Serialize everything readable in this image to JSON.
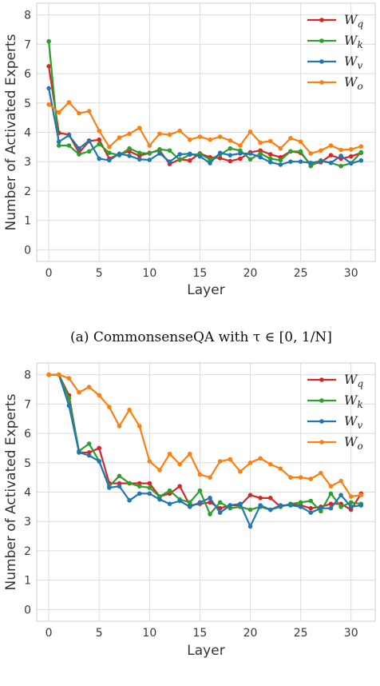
{
  "chart_data": [
    {
      "type": "line",
      "caption": "(a) CommonsenseQA with τ ∈ [0, 1/N]",
      "xlabel": "Layer",
      "ylabel": "Number of Activated Experts",
      "xlim": [
        -1.2,
        32.4
      ],
      "ylim": [
        -0.4,
        8.4
      ],
      "xticks": [
        0,
        5,
        10,
        15,
        20,
        25,
        30
      ],
      "yticks": [
        0,
        1,
        2,
        3,
        4,
        5,
        6,
        7,
        8
      ],
      "grid": true,
      "legend": "top-right",
      "x": [
        0,
        1,
        2,
        3,
        4,
        5,
        6,
        7,
        8,
        9,
        10,
        11,
        12,
        13,
        14,
        15,
        16,
        17,
        18,
        19,
        20,
        21,
        22,
        23,
        24,
        25,
        26,
        27,
        28,
        29,
        30,
        31
      ],
      "series": [
        {
          "name": "W",
          "subscript": "q",
          "color": "#d62728",
          "values": [
            6.25,
            3.98,
            3.92,
            3.3,
            3.7,
            3.75,
            3.1,
            3.26,
            3.35,
            3.2,
            3.3,
            3.38,
            2.92,
            3.08,
            3.04,
            3.28,
            3.15,
            3.12,
            3.02,
            3.1,
            3.32,
            3.38,
            3.25,
            3.15,
            3.35,
            3.3,
            2.9,
            2.98,
            3.22,
            3.1,
            3.18,
            3.3
          ]
        },
        {
          "name": "W",
          "subscript": "k",
          "color": "#2ca02c",
          "values": [
            7.1,
            3.55,
            3.55,
            3.25,
            3.35,
            3.6,
            3.3,
            3.22,
            3.45,
            3.3,
            3.28,
            3.42,
            3.38,
            3.06,
            3.24,
            3.26,
            3.08,
            3.24,
            3.45,
            3.38,
            3.08,
            3.28,
            3.1,
            3.05,
            3.35,
            3.35,
            2.85,
            3.04,
            2.96,
            2.85,
            2.95,
            3.32
          ]
        },
        {
          "name": "W",
          "subscript": "v",
          "color": "#1f77b4",
          "values": [
            5.5,
            3.68,
            3.9,
            3.45,
            3.72,
            3.1,
            3.05,
            3.27,
            3.2,
            3.08,
            3.06,
            3.28,
            3.0,
            3.25,
            3.27,
            3.18,
            2.95,
            3.3,
            3.22,
            3.28,
            3.28,
            3.15,
            2.98,
            2.9,
            3.0,
            3.0,
            2.96,
            3.02,
            2.96,
            3.2,
            2.94,
            3.04
          ]
        },
        {
          "name": "W",
          "subscript": "o",
          "color": "#ff7f0e",
          "values": [
            4.95,
            4.68,
            5.02,
            4.65,
            4.72,
            4.05,
            3.5,
            3.82,
            3.95,
            4.15,
            3.55,
            3.95,
            3.92,
            4.05,
            3.75,
            3.85,
            3.75,
            3.85,
            3.72,
            3.55,
            4.02,
            3.65,
            3.7,
            3.45,
            3.8,
            3.68,
            3.28,
            3.38,
            3.55,
            3.4,
            3.42,
            3.52
          ]
        }
      ]
    },
    {
      "type": "line",
      "xlabel": "Layer",
      "ylabel": "Number of Activated Experts",
      "xlim": [
        -1.2,
        32.4
      ],
      "ylim": [
        -0.4,
        8.4
      ],
      "xticks": [
        0,
        5,
        10,
        15,
        20,
        25,
        30
      ],
      "yticks": [
        0,
        1,
        2,
        3,
        4,
        5,
        6,
        7,
        8
      ],
      "grid": true,
      "legend": "top-right",
      "x": [
        0,
        1,
        2,
        3,
        4,
        5,
        6,
        7,
        8,
        9,
        10,
        11,
        12,
        13,
        14,
        15,
        16,
        17,
        18,
        19,
        20,
        21,
        22,
        23,
        24,
        25,
        26,
        27,
        28,
        29,
        30,
        31
      ],
      "series": [
        {
          "name": "W",
          "subscript": "q",
          "color": "#d62728",
          "values": [
            8.0,
            8.0,
            7.3,
            5.35,
            5.35,
            5.5,
            4.3,
            4.3,
            4.3,
            4.3,
            4.3,
            3.85,
            3.95,
            4.2,
            3.55,
            3.6,
            3.65,
            3.45,
            3.55,
            3.55,
            3.9,
            3.8,
            3.8,
            3.5,
            3.6,
            3.55,
            3.45,
            3.5,
            3.6,
            3.6,
            3.4,
            3.95
          ]
        },
        {
          "name": "W",
          "subscript": "k",
          "color": "#2ca02c",
          "values": [
            8.0,
            8.0,
            7.2,
            5.4,
            5.65,
            5.05,
            4.2,
            4.55,
            4.3,
            4.2,
            4.15,
            3.85,
            4.05,
            3.75,
            3.65,
            4.05,
            3.25,
            3.65,
            3.45,
            3.5,
            3.4,
            3.5,
            3.4,
            3.5,
            3.6,
            3.65,
            3.7,
            3.35,
            3.95,
            3.5,
            3.65,
            3.6
          ]
        },
        {
          "name": "W",
          "subscript": "v",
          "color": "#1f77b4",
          "values": [
            8.0,
            8.0,
            6.95,
            5.35,
            5.25,
            5.05,
            4.15,
            4.2,
            3.72,
            3.95,
            3.95,
            3.75,
            3.6,
            3.7,
            3.5,
            3.65,
            3.8,
            3.3,
            3.55,
            3.6,
            2.83,
            3.55,
            3.4,
            3.55,
            3.55,
            3.5,
            3.3,
            3.45,
            3.45,
            3.9,
            3.5,
            3.55
          ]
        },
        {
          "name": "W",
          "subscript": "o",
          "color": "#ff7f0e",
          "values": [
            8.0,
            8.0,
            7.88,
            7.4,
            7.58,
            7.3,
            6.9,
            6.25,
            6.8,
            6.25,
            5.05,
            4.75,
            5.3,
            4.95,
            5.3,
            4.6,
            4.5,
            5.05,
            5.12,
            4.7,
            5.0,
            5.15,
            4.95,
            4.8,
            4.5,
            4.5,
            4.45,
            4.65,
            4.2,
            4.38,
            3.85,
            3.9
          ]
        }
      ]
    }
  ]
}
